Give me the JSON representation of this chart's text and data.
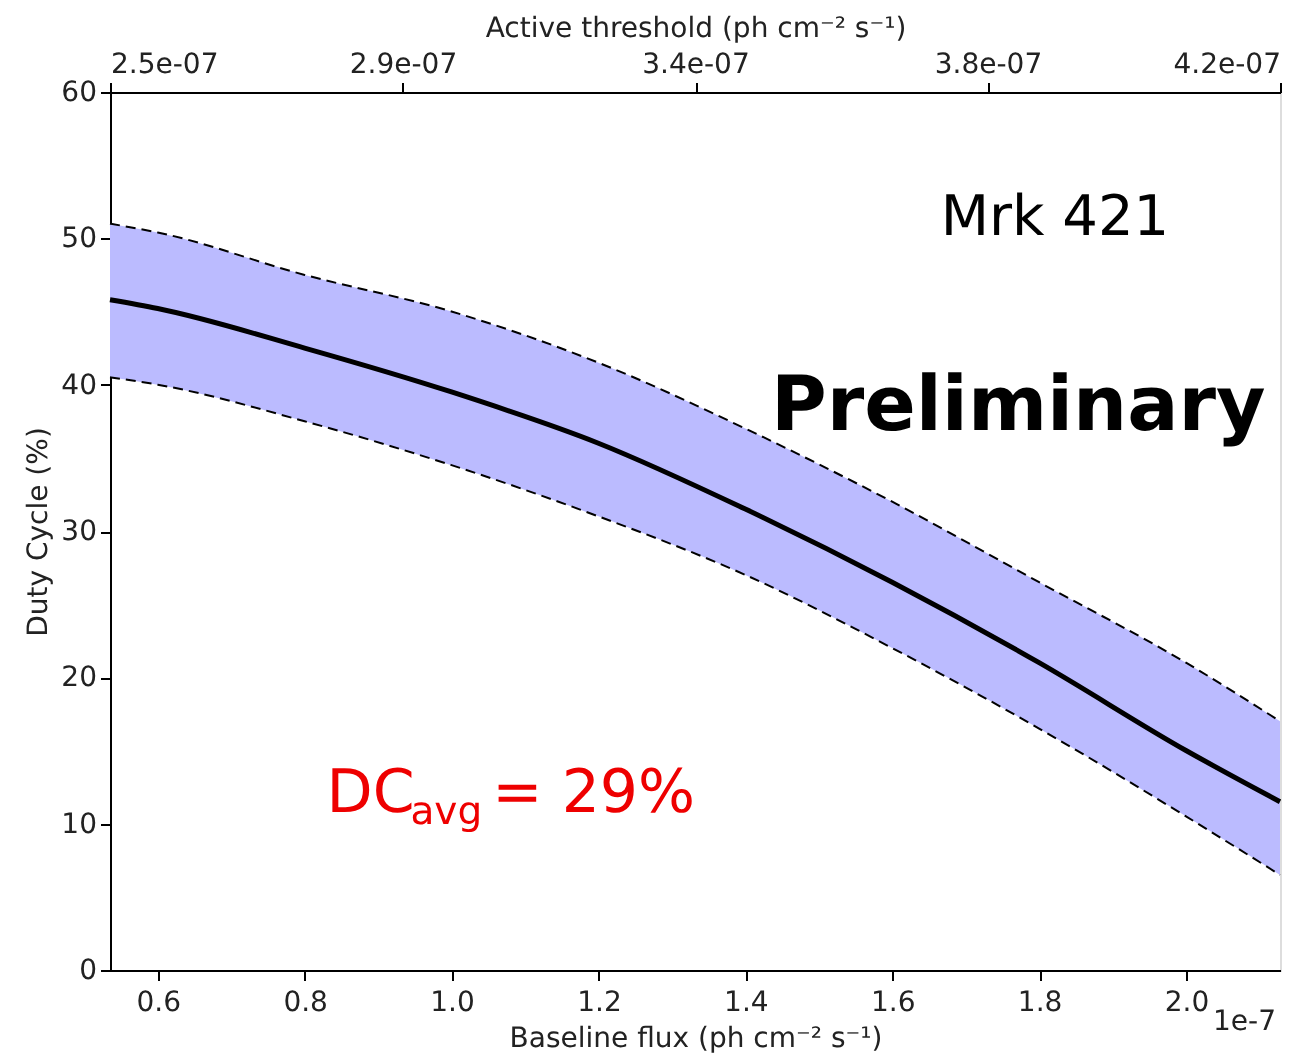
{
  "chart_data": {
    "type": "line",
    "xlabel": "Baseline flux (ph cm⁻² s⁻¹)",
    "ylabel": "Duty Cycle (%)",
    "x2label": "Active threshold (ph cm⁻² s⁻¹)",
    "x": [
      0.535,
      0.6,
      0.8,
      1.0,
      1.2,
      1.4,
      1.6,
      1.8,
      2.0,
      2.128
    ],
    "series": [
      {
        "color": "#000000",
        "values": [
          45.8,
          45.2,
          42.5,
          39.5,
          36,
          31.5,
          26.5,
          21,
          15,
          11.5
        ],
        "lower": [
          40.5,
          40,
          37.5,
          34.5,
          31,
          27,
          22,
          16.5,
          10.5,
          6.5
        ],
        "upper": [
          51,
          50.4,
          47.5,
          45,
          41.5,
          37,
          32,
          26.5,
          21,
          17
        ]
      },
      {
        "color": "#000000",
        "line_style": "dashed",
        "values": [
          40.5,
          40,
          37.5,
          34.5,
          31,
          27,
          22,
          16.5,
          10.5,
          6.5
        ]
      },
      {
        "color": "#000000",
        "line_style": "dashed",
        "values": [
          51,
          50.4,
          47.5,
          45,
          41.5,
          37,
          32,
          26.5,
          21,
          17
        ]
      }
    ],
    "xlim": [
      0.535,
      2.128
    ],
    "xticks": [
      0.6,
      0.8,
      {
        "value": 1,
        "label": "1.0"
      },
      1.2,
      1.4,
      1.6,
      1.8,
      {
        "value": 2,
        "label": "2.0"
      }
    ],
    "x2lim": [
      2.5e-07,
      4.2e-07
    ],
    "x2ticks": [
      {
        "value": 2.5e-07,
        "label": "2.5e-07"
      },
      {
        "value": 2.925e-07,
        "label": "2.9e-07"
      },
      {
        "value": 3.35e-07,
        "label": "3.4e-07"
      },
      {
        "value": 3.775e-07,
        "label": "3.8e-07"
      },
      {
        "value": 4.2e-07,
        "label": "4.2e-07"
      }
    ],
    "ylim": [
      0,
      60
    ],
    "yticks": [
      0,
      10,
      20,
      30,
      40,
      50,
      60
    ],
    "grid": false,
    "annotations": [
      "Mrk 421",
      "Preliminary",
      "DC$_{avg}$= 29%",
      "1e-7"
    ]
  }
}
